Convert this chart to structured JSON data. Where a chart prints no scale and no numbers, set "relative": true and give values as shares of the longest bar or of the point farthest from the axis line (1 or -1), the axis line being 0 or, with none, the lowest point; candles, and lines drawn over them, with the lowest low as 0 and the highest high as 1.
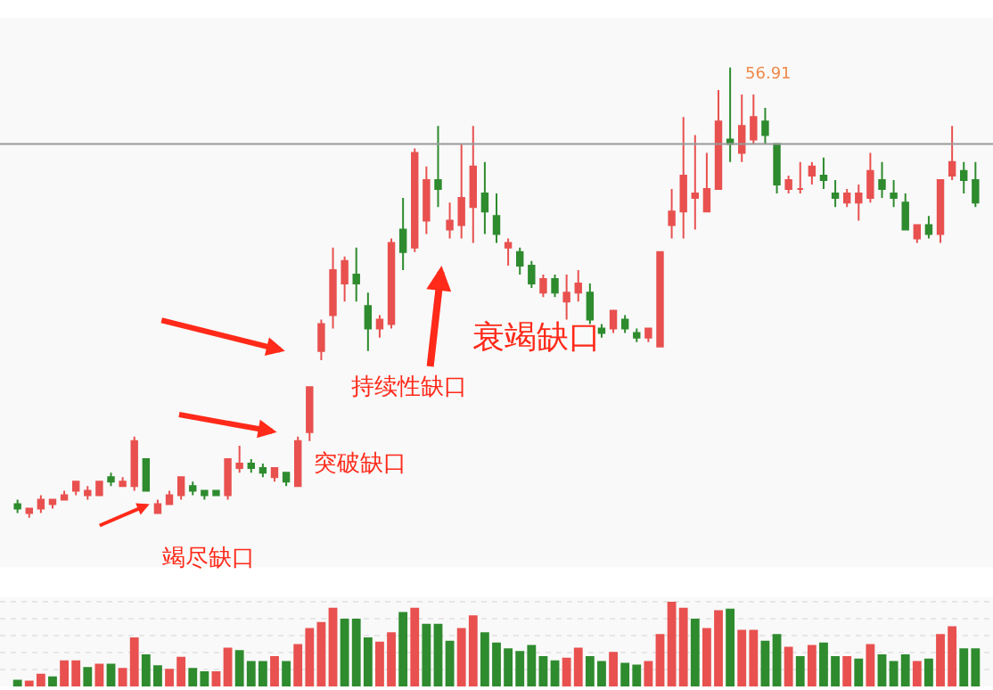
{
  "chart_data": [
    {
      "type": "candlestick",
      "relative": true,
      "categories": [
        null,
        null,
        null,
        null,
        null,
        null,
        null,
        null,
        null,
        null,
        null,
        null,
        null,
        null,
        null,
        null,
        null,
        null,
        null,
        null,
        null,
        null,
        null,
        null,
        null,
        null,
        null,
        null,
        null,
        null,
        null,
        null,
        null,
        null,
        null,
        null,
        null,
        null,
        null,
        null,
        null,
        null,
        null,
        null,
        null,
        null,
        null,
        null,
        null,
        null,
        null,
        null,
        null,
        null,
        null,
        null,
        null,
        null,
        null,
        null,
        null,
        null,
        null,
        null,
        null,
        null,
        null,
        null,
        null,
        null,
        null,
        null,
        null,
        null,
        null,
        null,
        null,
        null,
        null,
        null,
        null,
        null,
        null
      ],
      "ohlc": [
        [
          0.03,
          0.04,
          0.01,
          0.02
        ],
        [
          0.01,
          0.02,
          0.0,
          0.02
        ],
        [
          0.02,
          0.05,
          0.01,
          0.04
        ],
        [
          0.03,
          0.04,
          0.02,
          0.04
        ],
        [
          0.04,
          0.06,
          0.04,
          0.05
        ],
        [
          0.06,
          0.08,
          0.05,
          0.08
        ],
        [
          0.05,
          0.07,
          0.04,
          0.06
        ],
        [
          0.05,
          0.08,
          0.05,
          0.08
        ],
        [
          0.09,
          0.1,
          0.07,
          0.08
        ],
        [
          0.07,
          0.09,
          0.07,
          0.08
        ],
        [
          0.07,
          0.18,
          0.06,
          0.17
        ],
        [
          0.13,
          0.13,
          0.06,
          0.06
        ],
        [
          0.01,
          0.04,
          0.01,
          0.03
        ],
        [
          0.03,
          0.06,
          0.03,
          0.05
        ],
        [
          0.05,
          0.09,
          0.04,
          0.09
        ],
        [
          0.07,
          0.08,
          0.05,
          0.06
        ],
        [
          0.06,
          0.06,
          0.04,
          0.05
        ],
        [
          0.06,
          0.06,
          0.05,
          0.05
        ],
        [
          0.05,
          0.13,
          0.04,
          0.13
        ],
        [
          0.11,
          0.16,
          0.1,
          0.12
        ],
        [
          0.12,
          0.13,
          0.1,
          0.11
        ],
        [
          0.11,
          0.12,
          0.09,
          0.1
        ],
        [
          0.09,
          0.11,
          0.08,
          0.11
        ],
        [
          0.1,
          0.1,
          0.07,
          0.08
        ],
        [
          0.07,
          0.18,
          0.07,
          0.17
        ],
        [
          0.19,
          0.29,
          0.17,
          0.29
        ],
        [
          0.37,
          0.44,
          0.35,
          0.43
        ],
        [
          0.45,
          0.6,
          0.42,
          0.55
        ],
        [
          0.52,
          0.58,
          0.48,
          0.57
        ],
        [
          0.54,
          0.6,
          0.48,
          0.52
        ],
        [
          0.47,
          0.5,
          0.37,
          0.42
        ],
        [
          0.42,
          0.45,
          0.4,
          0.44
        ],
        [
          0.43,
          0.62,
          0.42,
          0.61
        ],
        [
          0.64,
          0.71,
          0.55,
          0.59
        ],
        [
          0.6,
          0.82,
          0.59,
          0.81
        ],
        [
          0.66,
          0.78,
          0.63,
          0.75
        ],
        [
          0.75,
          0.87,
          0.69,
          0.73
        ],
        [
          0.64,
          0.7,
          0.62,
          0.66
        ],
        [
          0.65,
          0.83,
          0.62,
          0.71
        ],
        [
          0.69,
          0.87,
          0.61,
          0.78
        ],
        [
          0.72,
          0.79,
          0.63,
          0.68
        ],
        [
          0.67,
          0.72,
          0.61,
          0.63
        ],
        [
          0.6,
          0.62,
          0.56,
          0.61
        ],
        [
          0.59,
          0.6,
          0.54,
          0.56
        ],
        [
          0.56,
          0.57,
          0.51,
          0.52
        ],
        [
          0.5,
          0.54,
          0.49,
          0.53
        ],
        [
          0.53,
          0.54,
          0.49,
          0.5
        ],
        [
          0.48,
          0.54,
          0.44,
          0.5
        ],
        [
          0.5,
          0.55,
          0.48,
          0.52
        ],
        [
          0.5,
          0.52,
          0.43,
          0.44
        ],
        [
          0.42,
          0.43,
          0.4,
          0.41
        ],
        [
          0.42,
          0.46,
          0.41,
          0.46
        ],
        [
          0.44,
          0.45,
          0.41,
          0.42
        ],
        [
          0.41,
          0.42,
          0.39,
          0.4
        ],
        [
          0.4,
          0.42,
          0.39,
          0.42
        ],
        [
          0.38,
          0.59,
          0.38,
          0.59
        ],
        [
          0.65,
          0.73,
          0.62,
          0.68
        ],
        [
          0.68,
          0.89,
          0.62,
          0.76
        ],
        [
          0.71,
          0.85,
          0.64,
          0.72
        ],
        [
          0.68,
          0.81,
          0.68,
          0.73
        ],
        [
          0.73,
          0.95,
          0.73,
          0.88
        ],
        [
          0.84,
          1.0,
          0.79,
          0.83
        ],
        [
          0.81,
          0.94,
          0.79,
          0.87
        ],
        [
          0.84,
          0.94,
          0.83,
          0.89
        ],
        [
          0.88,
          0.91,
          0.83,
          0.85
        ],
        [
          0.83,
          0.83,
          0.72,
          0.74
        ],
        [
          0.73,
          0.76,
          0.72,
          0.75
        ],
        [
          0.73,
          0.79,
          0.72,
          0.73
        ],
        [
          0.76,
          0.79,
          0.74,
          0.78
        ],
        [
          0.76,
          0.8,
          0.73,
          0.75
        ],
        [
          0.72,
          0.75,
          0.69,
          0.71
        ],
        [
          0.7,
          0.73,
          0.69,
          0.72
        ],
        [
          0.7,
          0.74,
          0.66,
          0.72
        ],
        [
          0.71,
          0.81,
          0.7,
          0.77
        ],
        [
          0.75,
          0.79,
          0.71,
          0.73
        ],
        [
          0.72,
          0.75,
          0.69,
          0.71
        ],
        [
          0.7,
          0.72,
          0.64,
          0.64
        ],
        [
          0.62,
          0.65,
          0.61,
          0.65
        ],
        [
          0.65,
          0.67,
          0.62,
          0.63
        ],
        [
          0.63,
          0.75,
          0.61,
          0.75
        ],
        [
          0.76,
          0.87,
          0.75,
          0.79
        ],
        [
          0.77,
          0.79,
          0.72,
          0.75
        ],
        [
          0.75,
          0.79,
          0.69,
          0.7
        ]
      ],
      "colors": [
        "#2e8b2e",
        "#e8514f",
        "#e8514f",
        "#e8514f",
        "#e8514f",
        "#e8514f",
        "#e8514f",
        "#e8514f",
        "#2e8b2e",
        "#e8514f",
        "#e8514f",
        "#2e8b2e",
        "#e8514f",
        "#e8514f",
        "#e8514f",
        "#2e8b2e",
        "#2e8b2e",
        "#2e8b2e",
        "#e8514f",
        "#e8514f",
        "#2e8b2e",
        "#2e8b2e",
        "#e8514f",
        "#2e8b2e",
        "#e8514f",
        "#e8514f",
        "#e8514f",
        "#e8514f",
        "#e8514f",
        "#2e8b2e",
        "#2e8b2e",
        "#e8514f",
        "#e8514f",
        "#2e8b2e",
        "#e8514f",
        "#e8514f",
        "#2e8b2e",
        "#e8514f",
        "#e8514f",
        "#e8514f",
        "#2e8b2e",
        "#2e8b2e",
        "#e8514f",
        "#2e8b2e",
        "#2e8b2e",
        "#e8514f",
        "#2e8b2e",
        "#e8514f",
        "#e8514f",
        "#2e8b2e",
        "#2e8b2e",
        "#e8514f",
        "#2e8b2e",
        "#2e8b2e",
        "#e8514f",
        "#e8514f",
        "#e8514f",
        "#e8514f",
        "#e8514f",
        "#e8514f",
        "#e8514f",
        "#2e8b2e",
        "#e8514f",
        "#e8514f",
        "#2e8b2e",
        "#2e8b2e",
        "#e8514f",
        "#e8514f",
        "#e8514f",
        "#2e8b2e",
        "#2e8b2e",
        "#e8514f",
        "#e8514f",
        "#e8514f",
        "#2e8b2e",
        "#2e8b2e",
        "#2e8b2e",
        "#e8514f",
        "#2e8b2e",
        "#e8514f",
        "#e8514f",
        "#2e8b2e",
        "#2e8b2e"
      ],
      "ref_lines": [
        {
          "axis": "y",
          "value": 0.83,
          "color": "#999999"
        }
      ],
      "annotations": [
        "竭尽缺口",
        "突破缺口",
        "持续性缺口",
        "衰竭缺口",
        "56.91"
      ]
    },
    {
      "type": "bar",
      "relative": true,
      "categories": [
        null,
        null,
        null,
        null,
        null,
        null,
        null,
        null,
        null,
        null,
        null,
        null,
        null,
        null,
        null,
        null,
        null,
        null,
        null,
        null,
        null,
        null,
        null,
        null,
        null,
        null,
        null,
        null,
        null,
        null,
        null,
        null,
        null,
        null,
        null,
        null,
        null,
        null,
        null,
        null,
        null,
        null,
        null,
        null,
        null,
        null,
        null,
        null,
        null,
        null,
        null,
        null,
        null,
        null,
        null,
        null,
        null,
        null,
        null,
        null,
        null,
        null,
        null,
        null,
        null,
        null,
        null,
        null,
        null,
        null,
        null,
        null,
        null,
        null,
        null,
        null,
        null,
        null,
        null,
        null,
        null,
        null,
        null
      ],
      "values": [
        0.08,
        0.07,
        0.15,
        0.12,
        0.31,
        0.31,
        0.23,
        0.27,
        0.27,
        0.22,
        0.58,
        0.38,
        0.25,
        0.21,
        0.35,
        0.22,
        0.18,
        0.18,
        0.46,
        0.43,
        0.3,
        0.3,
        0.36,
        0.3,
        0.5,
        0.69,
        0.76,
        0.93,
        0.8,
        0.8,
        0.58,
        0.53,
        0.64,
        0.88,
        0.93,
        0.74,
        0.74,
        0.54,
        0.69,
        0.84,
        0.64,
        0.52,
        0.45,
        0.42,
        0.49,
        0.36,
        0.31,
        0.34,
        0.46,
        0.36,
        0.3,
        0.41,
        0.28,
        0.26,
        0.3,
        0.62,
        1.0,
        0.93,
        0.8,
        0.69,
        0.9,
        0.92,
        0.67,
        0.67,
        0.54,
        0.62,
        0.47,
        0.36,
        0.49,
        0.52,
        0.36,
        0.36,
        0.33,
        0.5,
        0.38,
        0.3,
        0.38,
        0.3,
        0.33,
        0.62,
        0.71,
        0.45,
        0.45
      ],
      "colors": [
        "#2e8b2e",
        "#e8514f",
        "#e8514f",
        "#2e8b2e",
        "#e8514f",
        "#e8514f",
        "#2e8b2e",
        "#e8514f",
        "#2e8b2e",
        "#e8514f",
        "#e8514f",
        "#2e8b2e",
        "#2e8b2e",
        "#e8514f",
        "#e8514f",
        "#2e8b2e",
        "#2e8b2e",
        "#e8514f",
        "#e8514f",
        "#2e8b2e",
        "#2e8b2e",
        "#2e8b2e",
        "#e8514f",
        "#2e8b2e",
        "#e8514f",
        "#e8514f",
        "#e8514f",
        "#e8514f",
        "#2e8b2e",
        "#2e8b2e",
        "#2e8b2e",
        "#e8514f",
        "#e8514f",
        "#2e8b2e",
        "#e8514f",
        "#2e8b2e",
        "#2e8b2e",
        "#2e8b2e",
        "#e8514f",
        "#e8514f",
        "#2e8b2e",
        "#2e8b2e",
        "#2e8b2e",
        "#2e8b2e",
        "#2e8b2e",
        "#2e8b2e",
        "#2e8b2e",
        "#e8514f",
        "#e8514f",
        "#2e8b2e",
        "#2e8b2e",
        "#e8514f",
        "#2e8b2e",
        "#2e8b2e",
        "#e8514f",
        "#e8514f",
        "#e8514f",
        "#e8514f",
        "#2e8b2e",
        "#e8514f",
        "#e8514f",
        "#2e8b2e",
        "#e8514f",
        "#e8514f",
        "#2e8b2e",
        "#2e8b2e",
        "#e8514f",
        "#2e8b2e",
        "#e8514f",
        "#2e8b2e",
        "#2e8b2e",
        "#e8514f",
        "#2e8b2e",
        "#e8514f",
        "#2e8b2e",
        "#2e8b2e",
        "#2e8b2e",
        "#e8514f",
        "#2e8b2e",
        "#e8514f",
        "#e8514f",
        "#2e8b2e",
        "#2e8b2e"
      ],
      "grid": "y"
    }
  ]
}
